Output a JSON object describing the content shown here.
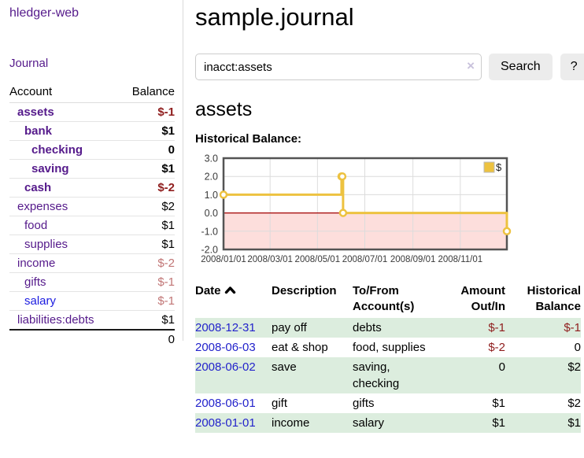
{
  "app": {
    "title": "hledger-web",
    "nav_journal": "Journal"
  },
  "colors": {
    "link_purple": "#551a8b",
    "link_blue": "#1b1be0",
    "date_link_blue": "#2323cb",
    "negative_red": "#8f1d1d",
    "muted_negative_red": "#c17575",
    "row_green": "#dcedde",
    "button_gray": "#ececec"
  },
  "sidebar": {
    "headers": {
      "account": "Account",
      "balance": "Balance"
    },
    "rows": [
      {
        "name": "assets",
        "depth": 1,
        "bold": true,
        "balance": "$-1",
        "balance_style": "neg"
      },
      {
        "name": "bank",
        "depth": 2,
        "bold": true,
        "balance": "$1",
        "balance_style": ""
      },
      {
        "name": "checking",
        "depth": 3,
        "bold": true,
        "balance": "0",
        "balance_style": ""
      },
      {
        "name": "saving",
        "depth": 3,
        "bold": true,
        "balance": "$1",
        "balance_style": ""
      },
      {
        "name": "cash",
        "depth": 2,
        "bold": true,
        "balance": "$-2",
        "balance_style": "neg"
      },
      {
        "name": "expenses",
        "depth": 1,
        "bold": false,
        "balance": "$2",
        "balance_style": ""
      },
      {
        "name": "food",
        "depth": 2,
        "bold": false,
        "balance": "$1",
        "balance_style": ""
      },
      {
        "name": "supplies",
        "depth": 2,
        "bold": false,
        "balance": "$1",
        "balance_style": ""
      },
      {
        "name": "income",
        "depth": 1,
        "bold": false,
        "balance": "$-2",
        "balance_style": "mutedneg"
      },
      {
        "name": "gifts",
        "depth": 2,
        "bold": false,
        "balance": "$-1",
        "balance_style": "mutedneg"
      },
      {
        "name": "salary",
        "depth": 2,
        "bold": false,
        "balance": "$-1",
        "balance_style": "mutedneg",
        "link_variant": "blue"
      },
      {
        "name": "liabilities:debts",
        "depth": 1,
        "bold": false,
        "balance": "$1",
        "balance_style": ""
      }
    ],
    "total": "0"
  },
  "main": {
    "title": "sample.journal",
    "search": {
      "value": "inacct:assets",
      "clear_icon": "×",
      "button": "Search",
      "help_button": "?"
    },
    "account_heading": "assets"
  },
  "chart_data": {
    "type": "line",
    "title": "Historical Balance:",
    "step": true,
    "series": [
      {
        "name": "$",
        "color": "#edc240",
        "points": [
          [
            "2008-01-01",
            1
          ],
          [
            "2008-06-01",
            2
          ],
          [
            "2008-06-02",
            2
          ],
          [
            "2008-06-03",
            0
          ],
          [
            "2008-12-31",
            -1
          ]
        ]
      }
    ],
    "xrange": [
      "2008-01-01",
      "2008-12-31"
    ],
    "ylim": [
      -2,
      3
    ],
    "x_ticks": [
      "2008/01/01",
      "2008/03/01",
      "2008/05/01",
      "2008/07/01",
      "2008/09/01",
      "2008/11/01"
    ],
    "y_ticks": [
      {
        "label": "3.0",
        "value": 3
      },
      {
        "label": "2.0",
        "value": 2
      },
      {
        "label": "1.0",
        "value": 1
      },
      {
        "label": "0.0",
        "value": 0
      },
      {
        "label": "-1.0",
        "value": -1
      },
      {
        "label": "-2.0",
        "value": -2
      }
    ],
    "grid": true,
    "legend_position": "top-right",
    "negative_region_color": "#fddedc",
    "zero_line_color": "#a40000",
    "border_color": "#545454",
    "grid_color": "#dcdcdc",
    "tick_label_color": "#3a3a3a"
  },
  "register": {
    "headers": {
      "date": "Date",
      "description": "Description",
      "tofrom": "To/From Account(s)",
      "amount": "Amount Out/In",
      "balance": "Historical Balance"
    },
    "rows": [
      {
        "date": "2008-12-31",
        "description": "pay off",
        "accounts": "debts",
        "amount": "$-1",
        "amount_neg": true,
        "balance": "$-1",
        "balance_neg": true,
        "green": true
      },
      {
        "date": "2008-06-03",
        "description": "eat & shop",
        "accounts": "food, supplies",
        "amount": "$-2",
        "amount_neg": true,
        "balance": "0",
        "balance_neg": false,
        "green": false
      },
      {
        "date": "2008-06-02",
        "description": "save",
        "accounts": "saving, checking",
        "amount": "0",
        "amount_neg": false,
        "balance": "$2",
        "balance_neg": false,
        "green": true
      },
      {
        "date": "2008-06-01",
        "description": "gift",
        "accounts": "gifts",
        "amount": "$1",
        "amount_neg": false,
        "balance": "$2",
        "balance_neg": false,
        "green": false
      },
      {
        "date": "2008-01-01",
        "description": "income",
        "accounts": "salary",
        "amount": "$1",
        "amount_neg": false,
        "balance": "$1",
        "balance_neg": false,
        "green": true
      }
    ]
  }
}
